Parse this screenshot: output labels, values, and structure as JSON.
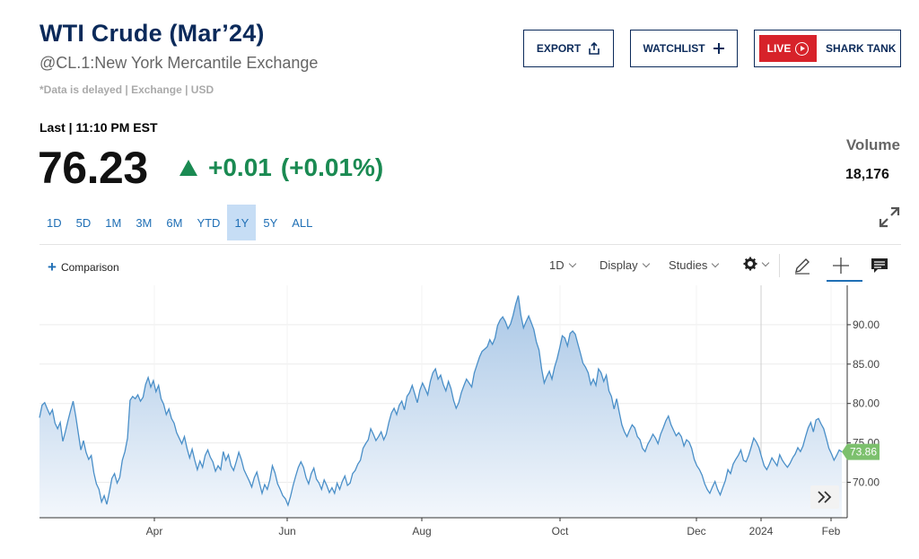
{
  "header": {
    "title": "WTI Crude (Mar’24)",
    "subtitle": "@CL.1:New York Mercantile Exchange",
    "delayed_note": "*Data is delayed | Exchange | USD"
  },
  "actions": {
    "export_label": "EXPORT",
    "watchlist_label": "WATCHLIST",
    "live_label": "LIVE",
    "shark_label": "SHARK TANK"
  },
  "quote": {
    "last_label": "Last | 11:10 PM EST",
    "price": "76.23",
    "change": "+0.01",
    "change_pct": "(+0.01%)",
    "change_color": "#1a8a52",
    "volume_label": "Volume",
    "volume_value": "18,176"
  },
  "ranges": {
    "items": [
      "1D",
      "5D",
      "1M",
      "3M",
      "6M",
      "YTD",
      "1Y",
      "5Y",
      "ALL"
    ],
    "active": "1Y"
  },
  "toolbar": {
    "comparison_label": "Comparison",
    "interval_label": "1D",
    "display_label": "Display",
    "studies_label": "Studies",
    "icons": [
      "gear-icon",
      "pencil-icon",
      "crosshair-icon",
      "comment-icon"
    ]
  },
  "chart_data": {
    "type": "area",
    "x_tick_labels": [
      "Apr",
      "Jun",
      "Aug",
      "Oct",
      "Dec",
      "2024",
      "Feb"
    ],
    "y_tick_labels": [
      "70.00",
      "75.00",
      "80.00",
      "85.00",
      "90.00"
    ],
    "ylim": [
      65.5,
      95
    ],
    "current_value_label": "73.86",
    "current_value": 73.86,
    "line_color": "#4a8fc8",
    "fill_top_color": "#a9c7e6",
    "fill_bottom_color": "#f3f7fc",
    "grid": true,
    "series": [
      {
        "values": [
          78.2,
          79.8,
          80.1,
          79.3,
          78.6,
          79.2,
          77.5,
          76.8,
          77.6,
          75.2,
          76.4,
          77.8,
          79.1,
          80.3,
          78.4,
          76.2,
          74.1,
          75.3,
          73.8,
          72.9,
          73.4,
          71.2,
          69.8,
          69.1,
          67.5,
          68.3,
          67.2,
          68.8,
          70.5,
          71.1,
          69.9,
          70.6,
          72.8,
          73.9,
          75.6,
          80.4,
          80.9,
          80.6,
          81.1,
          80.3,
          80.8,
          82.4,
          83.3,
          82.1,
          82.9,
          81.5,
          82.3,
          80.6,
          79.9,
          78.6,
          79.3,
          78.1,
          77.5,
          76.3,
          75.6,
          74.9,
          75.8,
          74.3,
          73.1,
          74.2,
          72.8,
          71.6,
          72.7,
          71.9,
          73.4,
          74.1,
          73.2,
          72.6,
          71.4,
          72.1,
          71.6,
          73.9,
          72.8,
          73.5,
          72.1,
          71.5,
          72.6,
          73.8,
          72.9,
          71.6,
          70.9,
          70.2,
          69.4,
          70.6,
          71.3,
          69.9,
          68.6,
          69.7,
          69.1,
          70.3,
          72.1,
          71.2,
          69.8,
          69.1,
          68.3,
          67.9,
          67.1,
          68.2,
          69.6,
          70.8,
          71.9,
          72.6,
          71.9,
          70.6,
          69.8,
          71.1,
          71.8,
          70.4,
          69.9,
          69.1,
          70.3,
          69.6,
          68.7,
          69.3,
          68.6,
          69.9,
          69.1,
          70.1,
          70.8,
          69.6,
          69.9,
          71.1,
          71.5,
          72.3,
          72.8,
          74.3,
          74.9,
          75.4,
          76.8,
          76.1,
          75.3,
          75.8,
          76.4,
          75.4,
          76.1,
          77.6,
          78.8,
          79.4,
          78.6,
          79.8,
          80.3,
          79.2,
          80.9,
          81.4,
          82.3,
          81.2,
          80.1,
          81.7,
          82.6,
          81.9,
          81.1,
          82.8,
          83.9,
          84.4,
          83.1,
          83.6,
          82.4,
          81.6,
          82.8,
          81.9,
          80.4,
          79.4,
          80.1,
          81.4,
          82.3,
          83.1,
          82.6,
          82.1,
          83.9,
          84.9,
          85.9,
          86.6,
          86.9,
          87.2,
          88.1,
          87.5,
          88.3,
          89.9,
          90.6,
          91.0,
          90.4,
          89.5,
          90.1,
          91.2,
          92.6,
          93.7,
          91.2,
          89.6,
          90.4,
          91.1,
          90.3,
          89.4,
          87.8,
          86.8,
          84.4,
          82.6,
          83.4,
          84.1,
          83.1,
          84.6,
          85.7,
          87.1,
          88.6,
          88.3,
          87.3,
          88.9,
          89.2,
          88.8,
          87.6,
          86.4,
          85.1,
          84.6,
          83.9,
          82.4,
          83.1,
          82.3,
          84.4,
          83.9,
          82.8,
          83.6,
          81.6,
          80.9,
          79.3,
          80.6,
          78.9,
          77.3,
          76.4,
          75.8,
          76.6,
          77.3,
          76.9,
          75.8,
          75.4,
          74.3,
          73.9,
          74.8,
          75.4,
          76.1,
          75.6,
          74.9,
          76.1,
          76.9,
          77.8,
          78.4,
          77.3,
          76.6,
          75.9,
          76.3,
          75.8,
          74.6,
          75.4,
          75.1,
          74.3,
          72.9,
          72.1,
          71.6,
          70.9,
          69.8,
          69.1,
          68.6,
          69.4,
          70.1,
          69.1,
          68.4,
          69.3,
          70.2,
          71.6,
          71.1,
          72.3,
          72.9,
          73.4,
          74.1,
          72.8,
          72.6,
          73.4,
          74.5,
          75.6,
          75.1,
          74.4,
          73.2,
          72.1,
          71.6,
          72.3,
          73.1,
          72.6,
          72.1,
          73.5,
          72.8,
          72.3,
          71.9,
          72.4,
          73.1,
          73.6,
          74.4,
          73.9,
          74.6,
          75.8,
          76.9,
          77.6,
          76.4,
          77.9,
          78.1,
          77.4,
          76.8,
          75.6,
          74.3,
          73.6,
          72.8,
          73.4,
          74.1,
          73.86
        ]
      }
    ]
  }
}
